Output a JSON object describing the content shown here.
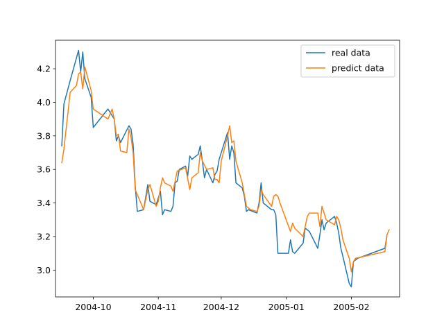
{
  "chart_data": {
    "type": "line",
    "title": "",
    "xlabel": "",
    "ylabel": "",
    "xlim": [
      "2004-09-13",
      "2005-02-24"
    ],
    "ylim": [
      2.84,
      4.37
    ],
    "x_ticks": [
      {
        "date": "2004-10-01",
        "label": "2004-10"
      },
      {
        "date": "2004-11-01",
        "label": "2004-11"
      },
      {
        "date": "2004-12-01",
        "label": "2004-12"
      },
      {
        "date": "2005-01-01",
        "label": "2005-01"
      },
      {
        "date": "2005-02-01",
        "label": "2005-02"
      }
    ],
    "y_ticks": [
      {
        "value": 3.0,
        "label": "3.0"
      },
      {
        "value": 3.2,
        "label": "3.2"
      },
      {
        "value": 3.4,
        "label": "3.4"
      },
      {
        "value": 3.6,
        "label": "3.6"
      },
      {
        "value": 3.8,
        "label": "3.8"
      },
      {
        "value": 4.0,
        "label": "4.0"
      },
      {
        "value": 4.2,
        "label": "4.2"
      }
    ],
    "grid": false,
    "legend_position": "upper right",
    "series": [
      {
        "name": "real data",
        "color": "#1f77b4",
        "points": [
          [
            "2004-09-16",
            3.74
          ],
          [
            "2004-09-17",
            3.99
          ],
          [
            "2004-09-20",
            4.13
          ],
          [
            "2004-09-24",
            4.31
          ],
          [
            "2004-09-25",
            4.18
          ],
          [
            "2004-09-26",
            4.3
          ],
          [
            "2004-09-27",
            4.14
          ],
          [
            "2004-09-30",
            4.03
          ],
          [
            "2004-10-01",
            3.85
          ],
          [
            "2004-10-08",
            3.96
          ],
          [
            "2004-10-11",
            3.9
          ],
          [
            "2004-10-12",
            3.77
          ],
          [
            "2004-10-13",
            3.8
          ],
          [
            "2004-10-14",
            3.76
          ],
          [
            "2004-10-18",
            3.86
          ],
          [
            "2004-10-19",
            3.84
          ],
          [
            "2004-10-20",
            3.75
          ],
          [
            "2004-10-21",
            3.5
          ],
          [
            "2004-10-22",
            3.35
          ],
          [
            "2004-10-25",
            3.36
          ],
          [
            "2004-10-27",
            3.51
          ],
          [
            "2004-10-28",
            3.41
          ],
          [
            "2004-10-31",
            3.39
          ],
          [
            "2004-11-02",
            3.47
          ],
          [
            "2004-11-03",
            3.33
          ],
          [
            "2004-11-04",
            3.36
          ],
          [
            "2004-11-07",
            3.35
          ],
          [
            "2004-11-08",
            3.38
          ],
          [
            "2004-11-09",
            3.52
          ],
          [
            "2004-11-10",
            3.53
          ],
          [
            "2004-11-11",
            3.6
          ],
          [
            "2004-11-14",
            3.62
          ],
          [
            "2004-11-15",
            3.56
          ],
          [
            "2004-11-16",
            3.68
          ],
          [
            "2004-11-17",
            3.66
          ],
          [
            "2004-11-20",
            3.69
          ],
          [
            "2004-11-21",
            3.74
          ],
          [
            "2004-11-22",
            3.65
          ],
          [
            "2004-11-23",
            3.55
          ],
          [
            "2004-11-24",
            3.6
          ],
          [
            "2004-11-27",
            3.52
          ],
          [
            "2004-11-28",
            3.57
          ],
          [
            "2004-11-29",
            3.59
          ],
          [
            "2004-11-30",
            3.66
          ],
          [
            "2004-12-04",
            3.82
          ],
          [
            "2004-12-05",
            3.66
          ],
          [
            "2004-12-06",
            3.74
          ],
          [
            "2004-12-07",
            3.7
          ],
          [
            "2004-12-08",
            3.52
          ],
          [
            "2004-12-11",
            3.49
          ],
          [
            "2004-12-12",
            3.44
          ],
          [
            "2004-12-13",
            3.35
          ],
          [
            "2004-12-14",
            3.36
          ],
          [
            "2004-12-18",
            3.34
          ],
          [
            "2004-12-19",
            3.4
          ],
          [
            "2004-12-20",
            3.52
          ],
          [
            "2004-12-21",
            3.4
          ],
          [
            "2004-12-25",
            3.36
          ],
          [
            "2004-12-26",
            3.36
          ],
          [
            "2004-12-27",
            3.33
          ],
          [
            "2004-12-28",
            3.1
          ],
          [
            "2005-01-02",
            3.1
          ],
          [
            "2005-01-03",
            3.18
          ],
          [
            "2005-01-04",
            3.11
          ],
          [
            "2005-01-05",
            3.1
          ],
          [
            "2005-01-09",
            3.16
          ],
          [
            "2005-01-10",
            3.25
          ],
          [
            "2005-01-11",
            3.24
          ],
          [
            "2005-01-12",
            3.23
          ],
          [
            "2005-01-16",
            3.13
          ],
          [
            "2005-01-17",
            3.21
          ],
          [
            "2005-01-18",
            3.3
          ],
          [
            "2005-01-19",
            3.24
          ],
          [
            "2005-01-20",
            3.28
          ],
          [
            "2005-01-24",
            3.32
          ],
          [
            "2005-01-25",
            3.28
          ],
          [
            "2005-01-26",
            3.22
          ],
          [
            "2005-01-27",
            3.13
          ],
          [
            "2005-01-28",
            3.08
          ],
          [
            "2005-01-31",
            2.92
          ],
          [
            "2005-02-01",
            2.9
          ],
          [
            "2005-02-02",
            3.05
          ],
          [
            "2005-02-03",
            3.06
          ],
          [
            "2005-02-04",
            3.07
          ],
          [
            "2005-02-17",
            3.13
          ],
          [
            "2005-02-18",
            3.21
          ]
        ]
      },
      {
        "name": "predict data",
        "color": "#ff7f0e",
        "points": [
          [
            "2004-09-16",
            3.64
          ],
          [
            "2004-09-17",
            3.72
          ],
          [
            "2004-09-20",
            4.06
          ],
          [
            "2004-09-23",
            4.1
          ],
          [
            "2004-09-24",
            4.17
          ],
          [
            "2004-09-25",
            4.18
          ],
          [
            "2004-09-26",
            4.08
          ],
          [
            "2004-09-27",
            4.21
          ],
          [
            "2004-09-30",
            4.07
          ],
          [
            "2004-10-01",
            3.96
          ],
          [
            "2004-10-08",
            3.9
          ],
          [
            "2004-10-10",
            3.96
          ],
          [
            "2004-10-11",
            3.9
          ],
          [
            "2004-10-12",
            3.8
          ],
          [
            "2004-10-13",
            3.81
          ],
          [
            "2004-10-14",
            3.71
          ],
          [
            "2004-10-17",
            3.7
          ],
          [
            "2004-10-18",
            3.84
          ],
          [
            "2004-10-19",
            3.79
          ],
          [
            "2004-10-20",
            3.7
          ],
          [
            "2004-10-21",
            3.48
          ],
          [
            "2004-10-25",
            3.36
          ],
          [
            "2004-10-27",
            3.48
          ],
          [
            "2004-10-28",
            3.51
          ],
          [
            "2004-10-31",
            3.38
          ],
          [
            "2004-11-01",
            3.41
          ],
          [
            "2004-11-02",
            3.49
          ],
          [
            "2004-11-03",
            3.55
          ],
          [
            "2004-11-04",
            3.52
          ],
          [
            "2004-11-07",
            3.5
          ],
          [
            "2004-11-08",
            3.47
          ],
          [
            "2004-11-09",
            3.53
          ],
          [
            "2004-11-10",
            3.59
          ],
          [
            "2004-11-14",
            3.61
          ],
          [
            "2004-11-16",
            3.48
          ],
          [
            "2004-11-17",
            3.55
          ],
          [
            "2004-11-20",
            3.58
          ],
          [
            "2004-11-21",
            3.7
          ],
          [
            "2004-11-22",
            3.65
          ],
          [
            "2004-11-24",
            3.6
          ],
          [
            "2004-11-27",
            3.61
          ],
          [
            "2004-11-28",
            3.54
          ],
          [
            "2004-11-29",
            3.54
          ],
          [
            "2004-11-30",
            3.52
          ],
          [
            "2004-12-01",
            3.65
          ],
          [
            "2004-12-04",
            3.8
          ],
          [
            "2004-12-05",
            3.86
          ],
          [
            "2004-12-06",
            3.76
          ],
          [
            "2004-12-07",
            3.77
          ],
          [
            "2004-12-08",
            3.65
          ],
          [
            "2004-12-11",
            3.52
          ],
          [
            "2004-12-12",
            3.45
          ],
          [
            "2004-12-13",
            3.38
          ],
          [
            "2004-12-14",
            3.37
          ],
          [
            "2004-12-15",
            3.36
          ],
          [
            "2004-12-18",
            3.35
          ],
          [
            "2004-12-19",
            3.38
          ],
          [
            "2004-12-20",
            3.48
          ],
          [
            "2004-12-21",
            3.45
          ],
          [
            "2004-12-25",
            3.38
          ],
          [
            "2004-12-26",
            3.44
          ],
          [
            "2004-12-27",
            3.45
          ],
          [
            "2004-12-28",
            3.44
          ],
          [
            "2004-12-29",
            3.4
          ],
          [
            "2005-01-03",
            3.23
          ],
          [
            "2005-01-04",
            3.28
          ],
          [
            "2005-01-05",
            3.25
          ],
          [
            "2005-01-09",
            3.2
          ],
          [
            "2005-01-10",
            3.26
          ],
          [
            "2005-01-11",
            3.32
          ],
          [
            "2005-01-12",
            3.34
          ],
          [
            "2005-01-16",
            3.34
          ],
          [
            "2005-01-17",
            3.26
          ],
          [
            "2005-01-18",
            3.38
          ],
          [
            "2005-01-19",
            3.34
          ],
          [
            "2005-01-20",
            3.3
          ],
          [
            "2005-01-24",
            3.27
          ],
          [
            "2005-01-25",
            3.32
          ],
          [
            "2005-01-26",
            3.3
          ],
          [
            "2005-01-27",
            3.25
          ],
          [
            "2005-01-28",
            3.18
          ],
          [
            "2005-01-31",
            3.07
          ],
          [
            "2005-02-01",
            2.99
          ],
          [
            "2005-02-02",
            3.05
          ],
          [
            "2005-02-03",
            3.07
          ],
          [
            "2005-02-17",
            3.11
          ],
          [
            "2005-02-18",
            3.21
          ],
          [
            "2005-02-19",
            3.24
          ]
        ]
      }
    ]
  }
}
